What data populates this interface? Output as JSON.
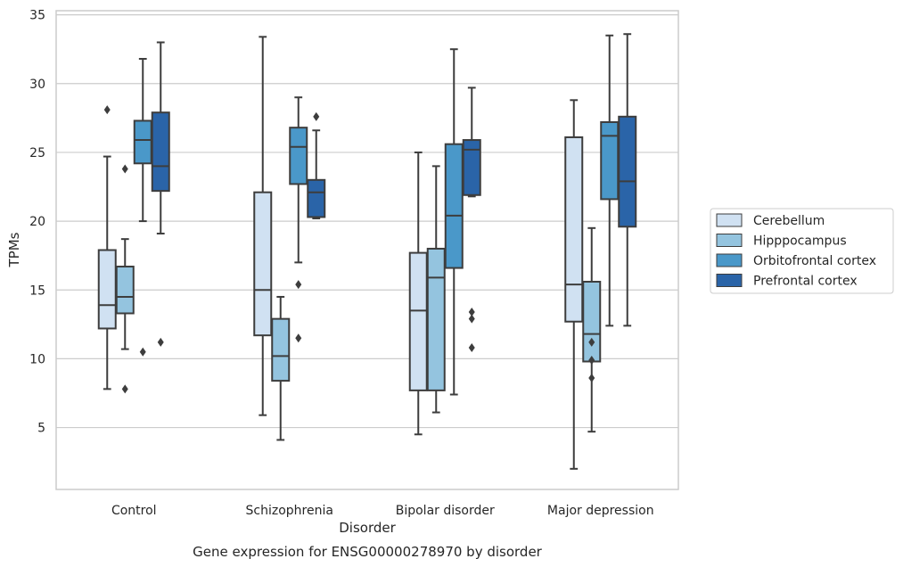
{
  "caption": "Gene expression for ENSG00000278970 by disorder",
  "chart_data": {
    "type": "box",
    "xlabel": "Disorder",
    "ylabel": "TPMs",
    "ylim": [
      0.5,
      35.3
    ],
    "yticks": [
      5,
      10,
      15,
      20,
      25,
      30,
      35
    ],
    "grid": "horizontal",
    "legend_position": "right",
    "categories": [
      "Control",
      "Schizophrenia",
      "Bipolar disorder",
      "Major depression"
    ],
    "series": [
      {
        "name": "Cerebellum",
        "color": "#d0e1f2",
        "boxes": [
          {
            "whislo": 7.8,
            "q1": 12.2,
            "med": 13.9,
            "q3": 17.9,
            "whishi": 24.7,
            "fliers": [
              28.1
            ]
          },
          {
            "whislo": 5.9,
            "q1": 11.7,
            "med": 15.0,
            "q3": 22.1,
            "whishi": 33.4,
            "fliers": []
          },
          {
            "whislo": 4.5,
            "q1": 7.7,
            "med": 13.5,
            "q3": 17.7,
            "whishi": 25.0,
            "fliers": []
          },
          {
            "whislo": 2.0,
            "q1": 12.7,
            "med": 15.4,
            "q3": 26.1,
            "whishi": 28.8,
            "fliers": []
          }
        ]
      },
      {
        "name": "Hipppocampus",
        "color": "#94c4df",
        "boxes": [
          {
            "whislo": 10.7,
            "q1": 13.3,
            "med": 14.5,
            "q3": 16.7,
            "whishi": 18.7,
            "fliers": [
              23.8,
              7.8
            ]
          },
          {
            "whislo": 4.1,
            "q1": 8.4,
            "med": 10.2,
            "q3": 12.9,
            "whishi": 14.5,
            "fliers": []
          },
          {
            "whislo": 6.1,
            "q1": 7.7,
            "med": 15.9,
            "q3": 18.0,
            "whishi": 24.0,
            "fliers": []
          },
          {
            "whislo": 4.7,
            "q1": 9.8,
            "med": 11.8,
            "q3": 15.6,
            "whishi": 19.5,
            "fliers": [
              11.2,
              9.9,
              8.6
            ]
          }
        ]
      },
      {
        "name": "Orbitofrontal cortex",
        "color": "#4a98c9",
        "boxes": [
          {
            "whislo": 20.0,
            "q1": 24.2,
            "med": 25.9,
            "q3": 27.3,
            "whishi": 31.8,
            "fliers": [
              10.5
            ]
          },
          {
            "whislo": 17.0,
            "q1": 22.7,
            "med": 25.4,
            "q3": 26.8,
            "whishi": 29.0,
            "fliers": [
              15.4,
              11.5
            ]
          },
          {
            "whislo": 7.4,
            "q1": 16.6,
            "med": 20.4,
            "q3": 25.6,
            "whishi": 32.5,
            "fliers": []
          },
          {
            "whislo": 12.4,
            "q1": 21.6,
            "med": 26.2,
            "q3": 27.2,
            "whishi": 33.5,
            "fliers": []
          }
        ]
      },
      {
        "name": "Prefrontal cortex",
        "color": "#2a64a8",
        "boxes": [
          {
            "whislo": 19.1,
            "q1": 22.2,
            "med": 24.0,
            "q3": 27.9,
            "whishi": 33.0,
            "fliers": [
              11.2
            ]
          },
          {
            "whislo": 20.2,
            "q1": 20.3,
            "med": 22.1,
            "q3": 23.0,
            "whishi": 26.6,
            "fliers": [
              27.6
            ]
          },
          {
            "whislo": 21.8,
            "q1": 21.9,
            "med": 25.2,
            "q3": 25.9,
            "whishi": 29.7,
            "fliers": [
              13.4,
              12.9,
              10.8
            ]
          },
          {
            "whislo": 12.4,
            "q1": 19.6,
            "med": 22.9,
            "q3": 27.6,
            "whishi": 33.6,
            "fliers": []
          }
        ]
      }
    ]
  }
}
